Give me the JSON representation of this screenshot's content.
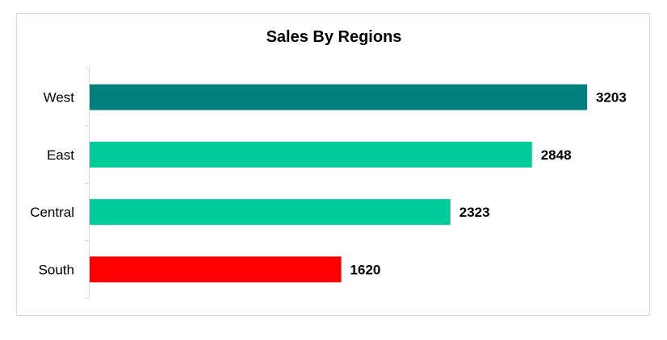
{
  "chart_data": {
    "type": "bar",
    "orientation": "horizontal",
    "title": "Sales By Regions",
    "categories": [
      "West",
      "East",
      "Central",
      "South"
    ],
    "values": [
      3203,
      2848,
      2323,
      1620
    ],
    "colors": [
      "#007f7f",
      "#00cc99",
      "#00cc99",
      "#ff0000"
    ],
    "xlim": [
      0,
      3400
    ],
    "xlabel": "",
    "ylabel": "",
    "grid": false,
    "legend": "none",
    "data_labels": true
  }
}
